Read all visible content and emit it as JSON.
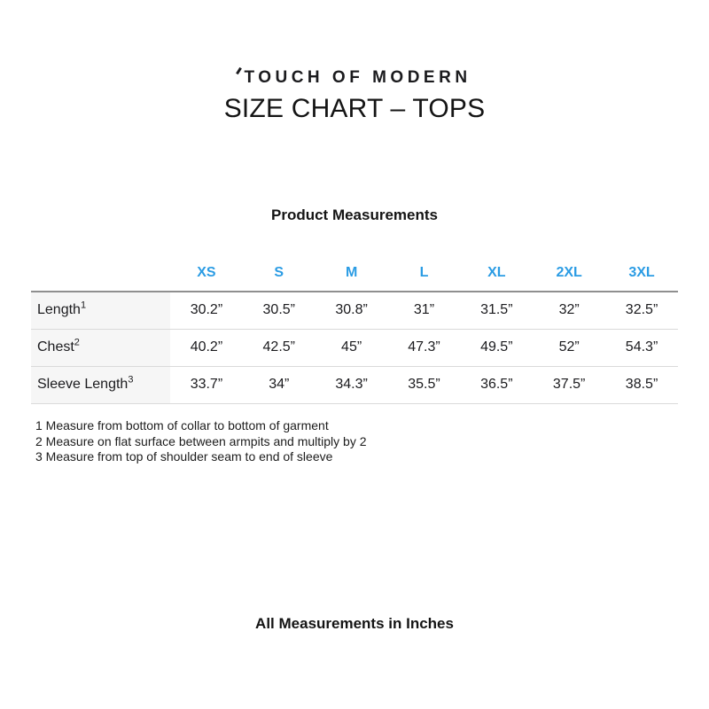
{
  "brand": {
    "logo_text": "TOUCH OF MODERN"
  },
  "title": "SIZE CHART – TOPS",
  "subtitle": "Product Measurements",
  "size_chart": {
    "header_color": "#2B9CE4",
    "columns": [
      "XS",
      "S",
      "M",
      "L",
      "XL",
      "2XL",
      "3XL"
    ],
    "rows": [
      {
        "label": "Length",
        "footnote_ref": "1",
        "values": [
          "30.2”",
          "30.5”",
          "30.8”",
          "31”",
          "31.5”",
          "32”",
          "32.5”"
        ]
      },
      {
        "label": "Chest",
        "footnote_ref": "2",
        "values": [
          "40.2”",
          "42.5”",
          "45”",
          "47.3”",
          "49.5”",
          "52”",
          "54.3”"
        ]
      },
      {
        "label": "Sleeve Length",
        "footnote_ref": "3",
        "values": [
          "33.7”",
          "34”",
          "34.3”",
          "35.5”",
          "36.5”",
          "37.5”",
          "38.5”"
        ]
      }
    ]
  },
  "footnotes": [
    "1 Measure from bottom of collar to bottom of garment",
    "2 Measure on flat surface between armpits and multiply by 2",
    "3 Measure from top of shoulder seam to end of sleeve"
  ],
  "footer_note": "All Measurements in Inches"
}
